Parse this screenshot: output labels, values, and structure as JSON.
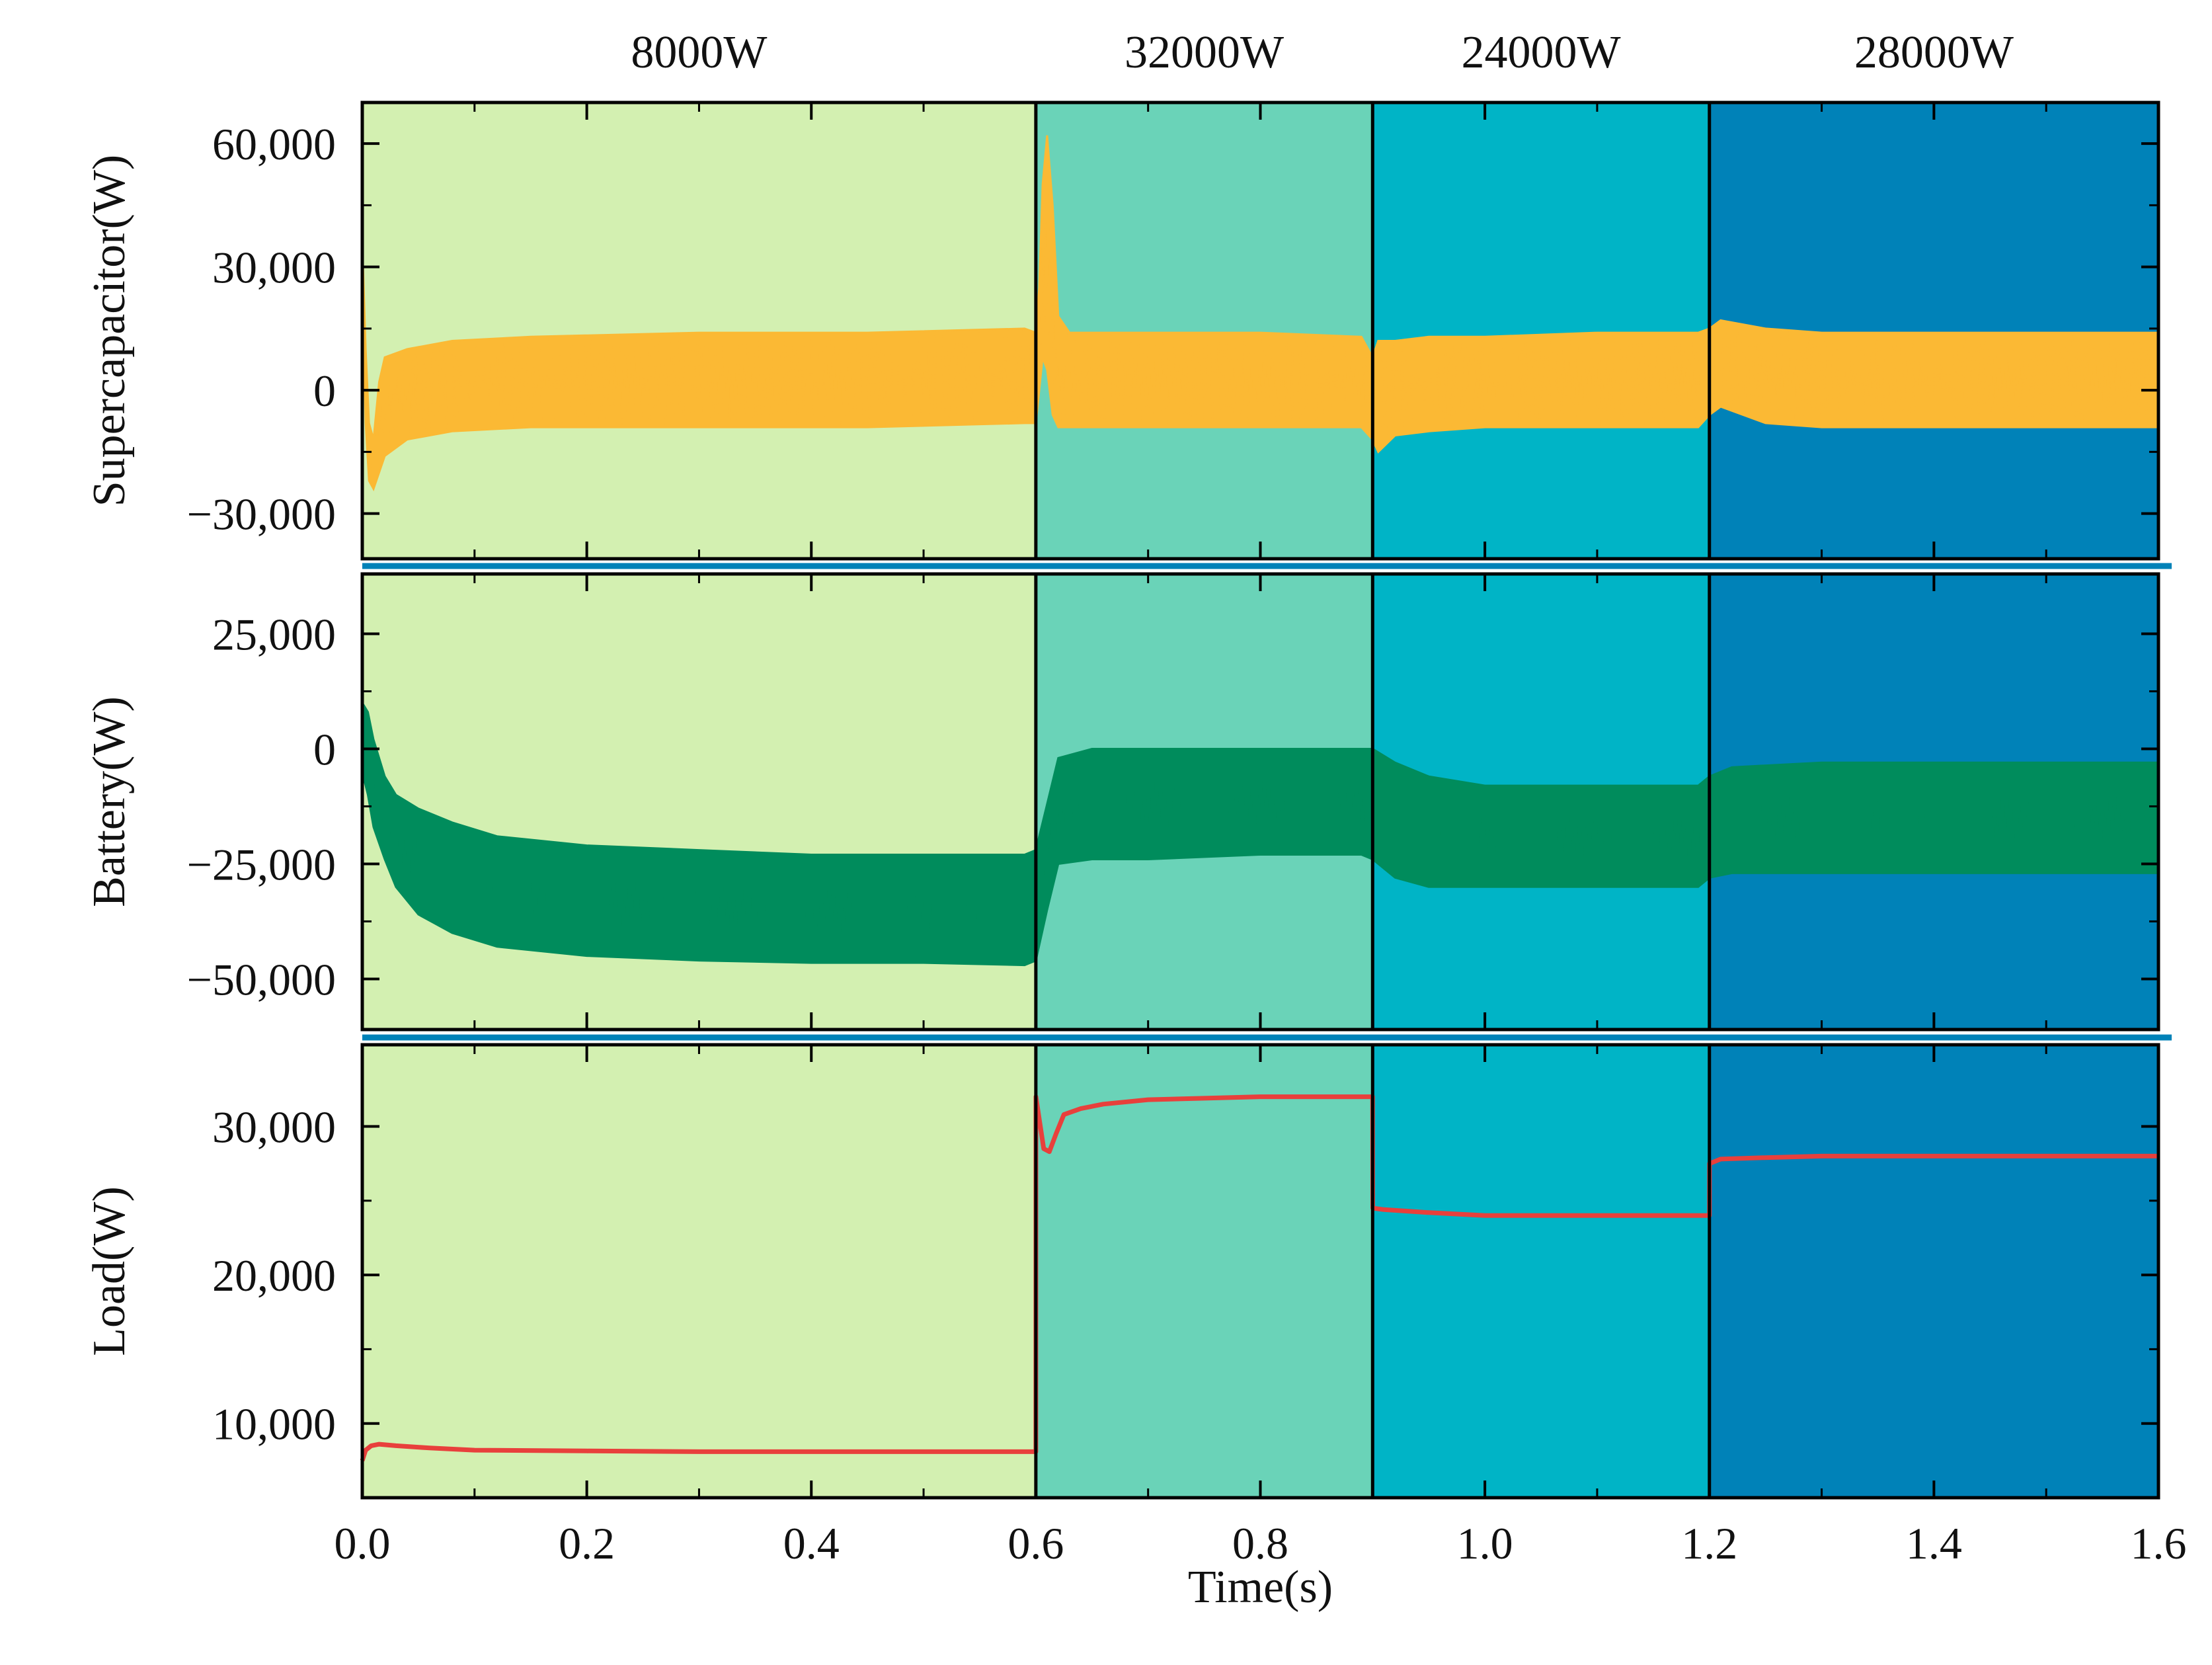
{
  "chart_data": {
    "type": "line",
    "subplots": 3,
    "xlabel": "Time(s)",
    "xlim": [
      0,
      1.6
    ],
    "x_ticks": [
      {
        "value": 0.0,
        "label": "0.0"
      },
      {
        "value": 0.2,
        "label": "0.2"
      },
      {
        "value": 0.4,
        "label": "0.4"
      },
      {
        "value": 0.6,
        "label": "0.6"
      },
      {
        "value": 0.8,
        "label": "0.8"
      },
      {
        "value": 1.0,
        "label": "1.0"
      },
      {
        "value": 1.2,
        "label": "1.2"
      },
      {
        "value": 1.4,
        "label": "1.4"
      },
      {
        "value": 1.6,
        "label": "1.6"
      }
    ],
    "segments": [
      {
        "label": "8000W",
        "start": 0.0,
        "end": 0.6,
        "color": "#d3f0b1"
      },
      {
        "label": "32000W",
        "start": 0.6,
        "end": 0.9,
        "color": "#6ad3b8"
      },
      {
        "label": "24000W",
        "start": 0.9,
        "end": 1.2,
        "color": "#00b4c6"
      },
      {
        "label": "28000W",
        "start": 1.2,
        "end": 1.6,
        "color": "#0082b8"
      }
    ],
    "panels": [
      {
        "name": "supercapacitor",
        "ylabel": "Supercapacitor(W)",
        "ylim": [
          -41000,
          70000
        ],
        "y_ticks": [
          {
            "value": 60000,
            "label": "60,000"
          },
          {
            "value": 30000,
            "label": "30,000"
          },
          {
            "value": 0,
            "label": "0"
          },
          {
            "value": -30000,
            "label": "−30,000"
          }
        ],
        "series": {
          "name": "Supercapacitor power",
          "color": "#fbb934",
          "x": [
            0.0,
            0.003,
            0.006,
            0.01,
            0.015,
            0.02,
            0.04,
            0.08,
            0.15,
            0.3,
            0.45,
            0.59,
            0.6,
            0.603,
            0.606,
            0.61,
            0.615,
            0.62,
            0.63,
            0.65,
            0.7,
            0.8,
            0.89,
            0.9,
            0.905,
            0.92,
            0.95,
            1.0,
            1.1,
            1.19,
            1.2,
            1.21,
            1.25,
            1.3,
            1.4,
            1.5,
            1.6
          ],
          "upper": [
            36000,
            10000,
            -8000,
            -12000,
            2000,
            8000,
            10000,
            12000,
            13000,
            14000,
            14000,
            15000,
            14000,
            25000,
            50000,
            62000,
            45000,
            18000,
            14000,
            14000,
            14000,
            14000,
            13000,
            8000,
            12000,
            12000,
            13000,
            13000,
            14000,
            14000,
            15000,
            17000,
            15000,
            14000,
            14000,
            14000,
            14000
          ],
          "lower": [
            28000,
            -8000,
            -22000,
            -24000,
            -20000,
            -16000,
            -12000,
            -10000,
            -9000,
            -9000,
            -9000,
            -8000,
            -8000,
            0,
            8000,
            5000,
            -6000,
            -9000,
            -9000,
            -9000,
            -9000,
            -9000,
            -9000,
            -12000,
            -15000,
            -11000,
            -10000,
            -9000,
            -9000,
            -9000,
            -6000,
            -4000,
            -8000,
            -9000,
            -9000,
            -9000,
            -9000
          ]
        }
      },
      {
        "name": "battery",
        "ylabel": "Battery(W)",
        "ylim": [
          -61000,
          38000
        ],
        "y_ticks": [
          {
            "value": 25000,
            "label": "25,000"
          },
          {
            "value": 0,
            "label": "0"
          },
          {
            "value": -25000,
            "label": "−25,000"
          },
          {
            "value": -50000,
            "label": "−50,000"
          }
        ],
        "series": {
          "name": "Battery power",
          "color": "#008c5c",
          "x": [
            0.0,
            0.005,
            0.01,
            0.02,
            0.03,
            0.05,
            0.08,
            0.12,
            0.2,
            0.3,
            0.4,
            0.5,
            0.59,
            0.6,
            0.61,
            0.62,
            0.65,
            0.7,
            0.8,
            0.89,
            0.9,
            0.92,
            0.95,
            1.0,
            1.1,
            1.19,
            1.2,
            1.22,
            1.3,
            1.4,
            1.5,
            1.6
          ],
          "upper": [
            10000,
            8000,
            2000,
            -6000,
            -10000,
            -13000,
            -16000,
            -19000,
            -21000,
            -22000,
            -23000,
            -23000,
            -23000,
            -22000,
            -12000,
            -2000,
            0,
            0,
            0,
            0,
            0,
            -3000,
            -6000,
            -8000,
            -8000,
            -8000,
            -6000,
            -4000,
            -3000,
            -3000,
            -3000,
            -3000
          ],
          "lower": [
            -5000,
            -10000,
            -17000,
            -24000,
            -30000,
            -36000,
            -40000,
            -43000,
            -45000,
            -46000,
            -46500,
            -46500,
            -47000,
            -46000,
            -35000,
            -25000,
            -24000,
            -24000,
            -23000,
            -23000,
            -24000,
            -28000,
            -30000,
            -30000,
            -30000,
            -30000,
            -28000,
            -27000,
            -27000,
            -27000,
            -27000,
            -27000
          ]
        }
      },
      {
        "name": "load",
        "ylabel": "Load(W)",
        "ylim": [
          5000,
          35500
        ],
        "y_ticks": [
          {
            "value": 30000,
            "label": "30,000"
          },
          {
            "value": 20000,
            "label": "20,000"
          },
          {
            "value": 10000,
            "label": "10,000"
          }
        ],
        "series": {
          "name": "Load power",
          "color": "#e8403c",
          "x": [
            0.0,
            0.003,
            0.008,
            0.015,
            0.03,
            0.06,
            0.1,
            0.2,
            0.3,
            0.4,
            0.5,
            0.6,
            0.6001,
            0.603,
            0.607,
            0.612,
            0.618,
            0.625,
            0.64,
            0.66,
            0.7,
            0.75,
            0.8,
            0.85,
            0.9,
            0.9001,
            0.91,
            0.95,
            1.0,
            1.1,
            1.2,
            1.2001,
            1.21,
            1.25,
            1.3,
            1.4,
            1.5,
            1.6
          ],
          "y": [
            7500,
            8200,
            8500,
            8600,
            8500,
            8350,
            8200,
            8150,
            8100,
            8100,
            8100,
            8100,
            32000,
            30500,
            28500,
            28300,
            29500,
            30800,
            31200,
            31500,
            31800,
            31900,
            32000,
            32000,
            32000,
            24500,
            24400,
            24200,
            24000,
            24000,
            24000,
            27500,
            27800,
            27900,
            28000,
            28000,
            28000,
            28000
          ]
        }
      }
    ]
  }
}
